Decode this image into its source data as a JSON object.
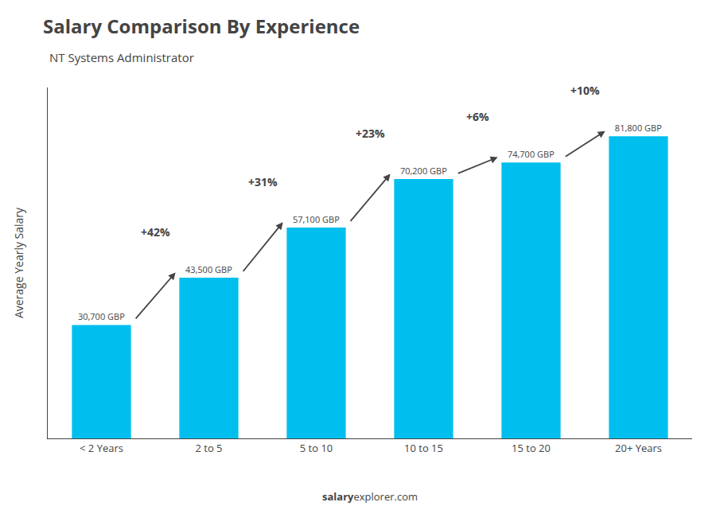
{
  "chart_data": {
    "type": "bar",
    "title": "Salary Comparison By Experience",
    "subtitle": "NT Systems Administrator",
    "categories": [
      "< 2 Years",
      "2 to 5",
      "5 to 10",
      "10 to 15",
      "15 to 20",
      "20+ Years"
    ],
    "values": [
      30700,
      43500,
      57100,
      70200,
      74700,
      81800
    ],
    "value_labels": [
      "30,700 GBP",
      "43,500 GBP",
      "57,100 GBP",
      "70,200 GBP",
      "74,700 GBP",
      "81,800 GBP"
    ],
    "data_labels": true,
    "color": "#00bfef",
    "ylabel": "Average Yearly Salary",
    "annotations": [
      "+42%",
      "+31%",
      "+23%",
      "+6%",
      "+10%"
    ],
    "watermark": [
      "salary",
      "explorer.com"
    ],
    "ylim": [
      0,
      95000
    ],
    "yticks": [],
    "tick_labels": "x",
    "grid": false
  }
}
